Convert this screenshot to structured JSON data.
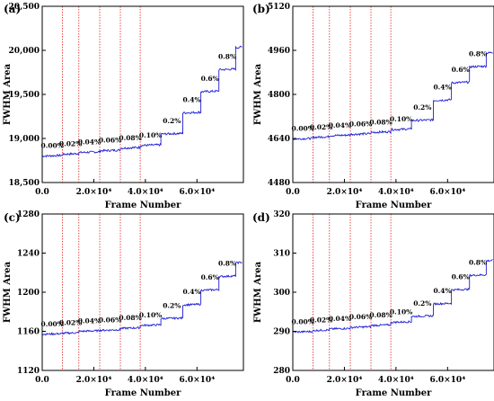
{
  "chart_data": [
    {
      "type": "line",
      "panel_label": "(a)",
      "xlabel": "Frame Number",
      "ylabel": "FWHM Area",
      "xlim": [
        0,
        78000
      ],
      "ylim": [
        18500,
        20500
      ],
      "yticks": [
        18500,
        19000,
        19500,
        20000,
        20500
      ],
      "ytick_labels": [
        "18,500",
        "19,000",
        "19,500",
        "20,000",
        "20,500"
      ],
      "xticks": [
        0,
        20000,
        40000,
        60000
      ],
      "xtick_labels": [
        "0.0",
        "2.0×10⁴",
        "4.0×10⁴",
        "6.0×10⁴"
      ],
      "vlines": [
        7800,
        14200,
        22300,
        30300,
        38000
      ],
      "steps": [
        {
          "label": "0.00%",
          "x_start": 0,
          "x_end": 7800,
          "y": 18800
        },
        {
          "label": "0.02%",
          "x_start": 7800,
          "x_end": 14200,
          "y": 18820
        },
        {
          "label": "0.04%",
          "x_start": 14200,
          "x_end": 22300,
          "y": 18840
        },
        {
          "label": "0.06%",
          "x_start": 22300,
          "x_end": 30300,
          "y": 18860
        },
        {
          "label": "0.08%",
          "x_start": 30300,
          "x_end": 38000,
          "y": 18890
        },
        {
          "label": "0.10%",
          "x_start": 38000,
          "x_end": 46000,
          "y": 18920
        },
        {
          "label": "0.2%",
          "x_start": 46000,
          "x_end": 54500,
          "y": 19050
        },
        {
          "label": "0.4%",
          "x_start": 54500,
          "x_end": 61500,
          "y": 19290
        },
        {
          "label": "0.6%",
          "x_start": 61500,
          "x_end": 68500,
          "y": 19530
        },
        {
          "label": "0.8%",
          "x_start": 68500,
          "x_end": 75000,
          "y": 19780
        },
        {
          "label": "",
          "x_start": 75000,
          "x_end": 77500,
          "y": 20030
        }
      ],
      "line_color": "#1f1fd6",
      "vline_color": "#e02020"
    },
    {
      "type": "line",
      "panel_label": "(b)",
      "xlabel": "Frame Number",
      "ylabel": "FWHM Area",
      "xlim": [
        0,
        78000
      ],
      "ylim": [
        4480,
        5120
      ],
      "yticks": [
        4480,
        4640,
        4800,
        4960,
        5120
      ],
      "ytick_labels": [
        "4480",
        "4640",
        "4800",
        "4960",
        "5120"
      ],
      "xticks": [
        0,
        20000,
        40000,
        60000
      ],
      "xtick_labels": [
        "0.0",
        "2.0×10⁴",
        "4.0×10⁴",
        "6.0×10⁴"
      ],
      "vlines": [
        7800,
        14200,
        22300,
        30300,
        38000
      ],
      "steps": [
        {
          "label": "0.00%",
          "x_start": 0,
          "x_end": 7800,
          "y": 4638
        },
        {
          "label": "0.02%",
          "x_start": 7800,
          "x_end": 14200,
          "y": 4644
        },
        {
          "label": "0.04%",
          "x_start": 14200,
          "x_end": 22300,
          "y": 4650
        },
        {
          "label": "0.06%",
          "x_start": 22300,
          "x_end": 30300,
          "y": 4655
        },
        {
          "label": "0.08%",
          "x_start": 30300,
          "x_end": 38000,
          "y": 4662
        },
        {
          "label": "0.10%",
          "x_start": 38000,
          "x_end": 46000,
          "y": 4672
        },
        {
          "label": "0.2%",
          "x_start": 46000,
          "x_end": 54500,
          "y": 4705
        },
        {
          "label": "0.4%",
          "x_start": 54500,
          "x_end": 61500,
          "y": 4778
        },
        {
          "label": "0.6%",
          "x_start": 61500,
          "x_end": 68500,
          "y": 4842
        },
        {
          "label": "0.8%",
          "x_start": 68500,
          "x_end": 75000,
          "y": 4900
        },
        {
          "label": "",
          "x_start": 75000,
          "x_end": 77500,
          "y": 4950
        }
      ],
      "line_color": "#1f1fd6",
      "vline_color": "#e02020"
    },
    {
      "type": "line",
      "panel_label": "(c)",
      "xlabel": "Frame Number",
      "ylabel": "FWHM Area",
      "xlim": [
        0,
        78000
      ],
      "ylim": [
        1120,
        1280
      ],
      "yticks": [
        1120,
        1160,
        1200,
        1240,
        1280
      ],
      "ytick_labels": [
        "1120",
        "1160",
        "1200",
        "1240",
        "1280"
      ],
      "xticks": [
        0,
        20000,
        40000,
        60000
      ],
      "xtick_labels": [
        "0.0",
        "2.0×10⁴",
        "4.0×10⁴",
        "6.0×10⁴"
      ],
      "vlines": [
        7800,
        14200,
        22300,
        30300,
        38000
      ],
      "steps": [
        {
          "label": "0.00%",
          "x_start": 0,
          "x_end": 7800,
          "y": 1157
        },
        {
          "label": "0.02%",
          "x_start": 7800,
          "x_end": 14200,
          "y": 1158
        },
        {
          "label": "0.04%",
          "x_start": 14200,
          "x_end": 22300,
          "y": 1160
        },
        {
          "label": "0.06%",
          "x_start": 22300,
          "x_end": 30300,
          "y": 1161
        },
        {
          "label": "0.08%",
          "x_start": 30300,
          "x_end": 38000,
          "y": 1163
        },
        {
          "label": "0.10%",
          "x_start": 38000,
          "x_end": 46000,
          "y": 1166
        },
        {
          "label": "0.2%",
          "x_start": 46000,
          "x_end": 54500,
          "y": 1173
        },
        {
          "label": "0.4%",
          "x_start": 54500,
          "x_end": 61500,
          "y": 1187
        },
        {
          "label": "0.6%",
          "x_start": 61500,
          "x_end": 68500,
          "y": 1202
        },
        {
          "label": "0.8%",
          "x_start": 68500,
          "x_end": 75000,
          "y": 1216
        },
        {
          "label": "",
          "x_start": 75000,
          "x_end": 77500,
          "y": 1230
        }
      ],
      "line_color": "#1f1fd6",
      "vline_color": "#e02020"
    },
    {
      "type": "line",
      "panel_label": "(d)",
      "xlabel": "Frame Number",
      "ylabel": "FWHM Area",
      "xlim": [
        0,
        78000
      ],
      "ylim": [
        280,
        320
      ],
      "yticks": [
        280,
        290,
        300,
        310,
        320
      ],
      "ytick_labels": [
        "280",
        "290",
        "300",
        "310",
        "320"
      ],
      "xticks": [
        0,
        20000,
        40000,
        60000
      ],
      "xtick_labels": [
        "0.0",
        "2.0×10⁴",
        "4.0×10⁴",
        "6.0×10⁴"
      ],
      "vlines": [
        7800,
        14200,
        22300,
        30300,
        38000
      ],
      "steps": [
        {
          "label": "0.00%",
          "x_start": 0,
          "x_end": 7800,
          "y": 289.8
        },
        {
          "label": "0.02%",
          "x_start": 7800,
          "x_end": 14200,
          "y": 290.2
        },
        {
          "label": "0.04%",
          "x_start": 14200,
          "x_end": 22300,
          "y": 290.6
        },
        {
          "label": "0.06%",
          "x_start": 22300,
          "x_end": 30300,
          "y": 291.0
        },
        {
          "label": "0.08%",
          "x_start": 30300,
          "x_end": 38000,
          "y": 291.5
        },
        {
          "label": "0.10%",
          "x_start": 38000,
          "x_end": 46000,
          "y": 292.3
        },
        {
          "label": "0.2%",
          "x_start": 46000,
          "x_end": 54500,
          "y": 293.8
        },
        {
          "label": "0.4%",
          "x_start": 54500,
          "x_end": 61500,
          "y": 297.0
        },
        {
          "label": "0.6%",
          "x_start": 61500,
          "x_end": 68500,
          "y": 300.6
        },
        {
          "label": "0.8%",
          "x_start": 68500,
          "x_end": 75000,
          "y": 304.3
        },
        {
          "label": "",
          "x_start": 75000,
          "x_end": 77500,
          "y": 308.0
        }
      ],
      "line_color": "#1f1fd6",
      "vline_color": "#e02020"
    }
  ]
}
